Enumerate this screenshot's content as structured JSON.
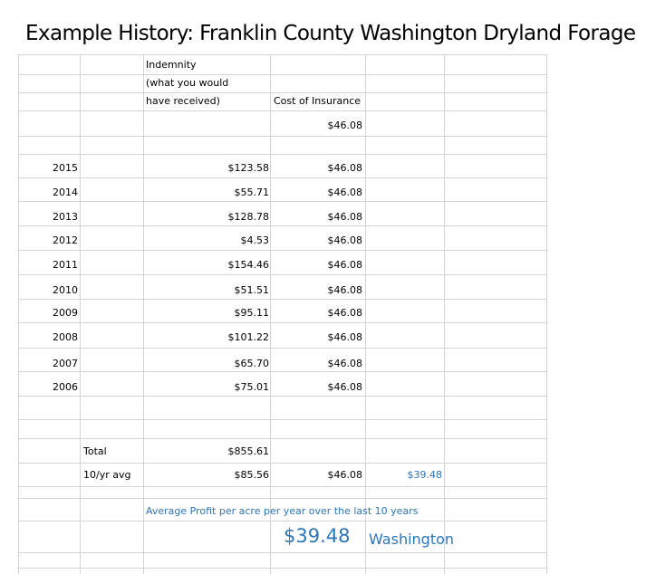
{
  "title": "Example History: Franklin County Washington Dryland Forage",
  "headers": {
    "indemnity_line1": "Indemnity",
    "indemnity_line2": "(what you would",
    "indemnity_line3": "have received)",
    "cost": "Cost of Insurance"
  },
  "base_cost": "$46.08",
  "rows": [
    {
      "year": "2015",
      "indemnity": "$123.58",
      "cost": "$46.08"
    },
    {
      "year": "2014",
      "indemnity": "$55.71",
      "cost": "$46.08"
    },
    {
      "year": "2013",
      "indemnity": "$128.78",
      "cost": "$46.08"
    },
    {
      "year": "2012",
      "indemnity": "$4.53",
      "cost": "$46.08"
    },
    {
      "year": "2011",
      "indemnity": "$154.46",
      "cost": "$46.08"
    },
    {
      "year": "2010",
      "indemnity": "$51.51",
      "cost": "$46.08"
    },
    {
      "year": "2009",
      "indemnity": "$95.11",
      "cost": "$46.08"
    },
    {
      "year": "2008",
      "indemnity": "$101.22",
      "cost": "$46.08"
    },
    {
      "year": "2007",
      "indemnity": "$65.70",
      "cost": "$46.08"
    },
    {
      "year": "2006",
      "indemnity": "$75.01",
      "cost": "$46.08"
    }
  ],
  "summary": {
    "total_label": "Total",
    "total_indemnity": "$855.61",
    "avg_label": "10/yr avg",
    "avg_indemnity": "$85.56",
    "avg_cost": "$46.08",
    "avg_profit": "$39.48"
  },
  "footer": {
    "caption": "Average Profit per acre per year  over the last 10 years",
    "big_value": "$39.48",
    "state": "Washington"
  },
  "colors": {
    "gridline": "#d4d4d4",
    "accent": "#2e75b6"
  }
}
